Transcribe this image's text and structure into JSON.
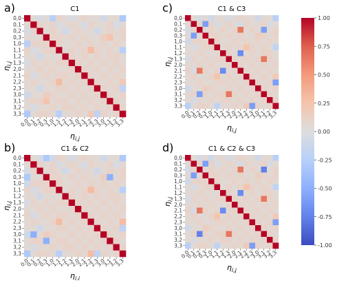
{
  "chart_data": [
    {
      "type": "heatmap",
      "panel_label": "a)",
      "title": "C1",
      "xlabel": "η_{i,j}",
      "ylabel": "η_{i,j}",
      "categories": [
        "0,0",
        "0,1",
        "0,2",
        "0,3",
        "1,0",
        "1,1",
        "1,2",
        "1,3",
        "2,0",
        "2,1",
        "2,2",
        "2,3",
        "3,0",
        "3,1",
        "3,2",
        "3,3"
      ],
      "values": [
        [
          1,
          0.05,
          -0.05,
          0.05,
          -0.25,
          0.1,
          0.05,
          -0.05,
          0.05,
          0.1,
          0.05,
          0.05,
          -0.1,
          0.05,
          0.05,
          -0.3
        ],
        [
          0.05,
          1,
          0.1,
          0.05,
          0.1,
          -0.05,
          0.05,
          0.1,
          0.05,
          -0.05,
          0.1,
          0.05,
          0.05,
          0.1,
          -0.05,
          0.05
        ],
        [
          -0.05,
          0.1,
          1,
          0.05,
          0.1,
          0.05,
          -0.1,
          0.05,
          0.1,
          0.05,
          0.05,
          -0.1,
          0.05,
          0.1,
          0.05,
          0.1
        ],
        [
          0.05,
          0.05,
          0.05,
          1,
          0.1,
          0.1,
          0.05,
          0.1,
          0.05,
          0.1,
          0.05,
          0.05,
          0.15,
          0.25,
          0.05,
          0.1
        ],
        [
          -0.25,
          0.1,
          0.1,
          0.1,
          1,
          0.1,
          0.05,
          0.05,
          0.1,
          0.05,
          0.1,
          0.05,
          0.1,
          0.05,
          0.1,
          0.05
        ],
        [
          0.1,
          -0.05,
          0.05,
          0.1,
          0.1,
          1,
          0.05,
          0.1,
          0.05,
          0.1,
          0.3,
          0.1,
          0.05,
          0.1,
          0.05,
          -0.25
        ],
        [
          0.05,
          0.05,
          -0.1,
          0.05,
          0.05,
          0.05,
          1,
          0.1,
          0.05,
          0.1,
          0.05,
          0.1,
          0.05,
          0.1,
          0.1,
          0.05
        ],
        [
          -0.05,
          0.1,
          0.05,
          0.1,
          0.05,
          0.1,
          0.1,
          1,
          0.1,
          0.05,
          0.1,
          0.05,
          0.1,
          0.05,
          0.1,
          0.05
        ],
        [
          0.05,
          0.05,
          0.1,
          0.05,
          0.1,
          0.05,
          0.05,
          0.1,
          1,
          0.1,
          0.05,
          0.1,
          0.05,
          0.1,
          0.05,
          0.1
        ],
        [
          0.1,
          -0.05,
          0.05,
          0.1,
          0.05,
          0.1,
          0.1,
          0.05,
          0.1,
          1,
          0.1,
          0.05,
          0.1,
          0.05,
          0.1,
          0.05
        ],
        [
          0.05,
          0.1,
          0.05,
          0.05,
          0.1,
          0.3,
          0.05,
          0.1,
          0.05,
          0.1,
          1,
          0.1,
          0.05,
          0.1,
          0.05,
          0.2
        ],
        [
          0.05,
          0.05,
          -0.1,
          0.05,
          0.05,
          0.1,
          0.1,
          0.05,
          0.1,
          0.05,
          0.1,
          1,
          0.1,
          0.05,
          0.1,
          -0.2
        ],
        [
          -0.1,
          0.05,
          0.05,
          0.15,
          0.1,
          0.05,
          0.05,
          0.1,
          0.05,
          0.1,
          0.05,
          0.1,
          1,
          0.1,
          0.05,
          0.1
        ],
        [
          0.05,
          0.1,
          0.1,
          0.25,
          0.05,
          0.1,
          0.1,
          0.05,
          0.1,
          0.05,
          0.1,
          0.05,
          0.1,
          1,
          0.1,
          0.05
        ],
        [
          0.05,
          -0.05,
          0.05,
          0.05,
          0.1,
          0.05,
          0.1,
          0.1,
          0.05,
          0.1,
          0.05,
          0.1,
          0.05,
          0.1,
          1,
          0.1
        ],
        [
          -0.3,
          0.05,
          0.1,
          0.1,
          0.05,
          -0.25,
          0.05,
          0.05,
          0.1,
          0.05,
          0.2,
          -0.2,
          0.1,
          0.05,
          0.1,
          1
        ]
      ],
      "zlim": [
        -1,
        1
      ]
    },
    {
      "type": "heatmap",
      "panel_label": "c)",
      "title": "C1 & C3",
      "xlabel": "η_{i,j}",
      "ylabel": "η_{i,j}",
      "categories": [
        "0,0",
        "0,1",
        "0,2",
        "0,3",
        "1,0",
        "1,1",
        "1,2",
        "1,3",
        "2,0",
        "2,1",
        "2,2",
        "2,3",
        "3,0",
        "3,1",
        "3,2",
        "3,3"
      ],
      "values": [
        [
          1,
          0.05,
          -0.05,
          0.05,
          -0.1,
          0.05,
          0.05,
          -0.05,
          0.05,
          0.1,
          0.05,
          0.05,
          -0.1,
          0.05,
          0.05,
          -0.25
        ],
        [
          0.05,
          1,
          0.1,
          -0.6,
          0.1,
          -0.05,
          0.05,
          0.1,
          0.05,
          -0.05,
          0.1,
          0.05,
          0.05,
          0.1,
          -0.05,
          0.05
        ],
        [
          -0.05,
          0.1,
          1,
          0.05,
          0.1,
          0.05,
          0.1,
          0.05,
          0.1,
          0.65,
          0.05,
          0.1,
          0.05,
          -0.6,
          0.05,
          0.1
        ],
        [
          0.05,
          -0.6,
          0.05,
          1,
          0.1,
          0.1,
          0.05,
          0.1,
          0.05,
          0.1,
          0.05,
          0.05,
          0.15,
          0.1,
          0.05,
          0.1
        ],
        [
          -0.1,
          0.1,
          0.1,
          0.1,
          1,
          0.1,
          0.05,
          0.05,
          0.1,
          0.05,
          0.1,
          0.05,
          0.1,
          0.05,
          0.1,
          0.05
        ],
        [
          0.05,
          -0.05,
          0.05,
          0.1,
          0.1,
          1,
          0.05,
          0.1,
          0.05,
          0.1,
          0.25,
          0.1,
          0.05,
          0.1,
          0.05,
          -0.2
        ],
        [
          0.05,
          0.05,
          0.1,
          0.05,
          0.05,
          0.05,
          1,
          0.1,
          0.05,
          -0.7,
          0.05,
          0.1,
          0.05,
          0.1,
          0.1,
          0.05
        ],
        [
          -0.05,
          0.1,
          0.05,
          0.1,
          0.05,
          0.1,
          0.1,
          1,
          0.1,
          0.05,
          0.1,
          0.05,
          0.1,
          0.65,
          0.1,
          0.05
        ],
        [
          0.05,
          0.05,
          0.1,
          0.05,
          0.1,
          0.05,
          0.05,
          0.1,
          1,
          0.1,
          0.05,
          0.1,
          0.05,
          0.1,
          0.05,
          0.1
        ],
        [
          0.1,
          -0.05,
          0.65,
          0.1,
          0.05,
          0.1,
          -0.7,
          0.05,
          0.1,
          1,
          0.1,
          0.05,
          0.1,
          0.05,
          0.1,
          0.05
        ],
        [
          0.05,
          0.1,
          0.05,
          0.05,
          0.1,
          0.25,
          0.05,
          0.1,
          0.05,
          0.1,
          1,
          0.1,
          0.05,
          0.1,
          0.05,
          0.2
        ],
        [
          0.05,
          0.05,
          0.1,
          0.05,
          0.05,
          0.1,
          0.1,
          0.05,
          0.1,
          0.05,
          0.1,
          1,
          0.1,
          0.05,
          0.1,
          -0.6
        ],
        [
          -0.1,
          0.05,
          0.05,
          0.15,
          0.1,
          0.05,
          0.05,
          0.1,
          0.05,
          0.1,
          0.05,
          0.1,
          1,
          0.1,
          0.05,
          0.1
        ],
        [
          0.05,
          0.1,
          -0.6,
          0.1,
          0.05,
          0.1,
          0.1,
          0.65,
          0.1,
          0.05,
          0.1,
          0.05,
          0.1,
          1,
          0.1,
          0.05
        ],
        [
          0.05,
          -0.05,
          0.05,
          0.05,
          0.1,
          0.05,
          0.1,
          0.1,
          0.05,
          0.1,
          0.05,
          0.1,
          0.05,
          0.1,
          1,
          0.1
        ],
        [
          -0.25,
          0.05,
          0.1,
          0.1,
          0.05,
          -0.2,
          0.05,
          0.05,
          0.1,
          0.05,
          0.2,
          -0.6,
          0.1,
          0.05,
          0.1,
          1
        ]
      ],
      "zlim": [
        -1,
        1
      ]
    },
    {
      "type": "heatmap",
      "panel_label": "b)",
      "title": "C1 & C2",
      "xlabel": "η_{i,j}",
      "ylabel": "η_{i,j}",
      "categories": [
        "0,0",
        "0,1",
        "0,2",
        "0,3",
        "1,0",
        "1,1",
        "1,2",
        "1,3",
        "2,0",
        "2,1",
        "2,2",
        "2,3",
        "3,0",
        "3,1",
        "3,2",
        "3,3"
      ],
      "values": [
        [
          1,
          0.05,
          -0.05,
          -0.3,
          -0.1,
          0.1,
          0.05,
          -0.05,
          0.05,
          0.1,
          0.05,
          0.05,
          -0.1,
          0.05,
          0.05,
          -0.3
        ],
        [
          0.05,
          1,
          0.1,
          0.05,
          0.1,
          -0.05,
          0.05,
          0.1,
          0.05,
          -0.05,
          0.1,
          0.05,
          0.05,
          0.1,
          -0.05,
          0.05
        ],
        [
          -0.05,
          0.1,
          1,
          0.05,
          0.1,
          0.05,
          -0.1,
          0.05,
          0.1,
          0.05,
          0.05,
          -0.1,
          0.05,
          0.1,
          0.05,
          0.1
        ],
        [
          -0.3,
          0.05,
          0.05,
          1,
          0.1,
          0.1,
          0.05,
          0.1,
          0.05,
          0.1,
          0.05,
          0.05,
          0.15,
          -0.5,
          0.05,
          0.1
        ],
        [
          -0.1,
          0.1,
          0.1,
          0.1,
          1,
          0.1,
          0.05,
          0.05,
          0.1,
          0.05,
          0.1,
          0.05,
          0.1,
          0.05,
          0.1,
          0.05
        ],
        [
          0.1,
          -0.05,
          0.05,
          0.1,
          0.1,
          1,
          0.05,
          0.1,
          0.05,
          0.1,
          0.3,
          0.1,
          0.05,
          0.1,
          0.05,
          -0.25
        ],
        [
          0.05,
          0.05,
          -0.1,
          0.05,
          0.05,
          0.05,
          1,
          0.1,
          0.05,
          0.1,
          0.05,
          0.1,
          0.05,
          0.1,
          0.1,
          0.05
        ],
        [
          -0.05,
          0.1,
          0.05,
          0.1,
          0.05,
          0.1,
          0.1,
          1,
          0.1,
          0.05,
          0.1,
          0.05,
          0.1,
          0.05,
          0.1,
          0.05
        ],
        [
          0.05,
          0.05,
          0.1,
          0.05,
          0.1,
          0.05,
          0.05,
          0.1,
          1,
          0.1,
          0.05,
          0.1,
          0.05,
          0.1,
          0.05,
          0.1
        ],
        [
          0.1,
          -0.05,
          0.05,
          0.1,
          0.05,
          0.1,
          0.1,
          0.05,
          0.1,
          1,
          0.1,
          0.05,
          0.1,
          0.05,
          0.1,
          0.05
        ],
        [
          0.05,
          0.1,
          0.05,
          0.05,
          0.1,
          0.3,
          0.05,
          0.1,
          0.05,
          0.1,
          1,
          0.1,
          0.05,
          0.1,
          0.05,
          0.3
        ],
        [
          0.05,
          0.05,
          -0.1,
          0.05,
          0.05,
          0.1,
          0.1,
          0.05,
          0.1,
          0.05,
          0.1,
          1,
          0.1,
          0.05,
          0.1,
          -0.2
        ],
        [
          -0.1,
          -0.5,
          0.05,
          0.15,
          0.1,
          0.05,
          0.05,
          0.1,
          0.05,
          0.1,
          0.05,
          0.1,
          1,
          0.1,
          0.05,
          0.1
        ],
        [
          0.05,
          0.1,
          0.1,
          -0.5,
          0.05,
          0.1,
          0.1,
          0.05,
          0.1,
          0.05,
          0.1,
          0.05,
          0.1,
          1,
          0.1,
          0.05
        ],
        [
          0.05,
          -0.05,
          0.05,
          0.05,
          0.1,
          0.05,
          0.1,
          0.1,
          0.05,
          0.1,
          0.05,
          0.1,
          0.05,
          0.1,
          1,
          0.1
        ],
        [
          -0.3,
          0.05,
          0.1,
          0.1,
          0.05,
          -0.25,
          0.05,
          0.05,
          0.1,
          0.05,
          0.3,
          -0.2,
          0.1,
          0.05,
          0.1,
          1
        ]
      ],
      "zlim": [
        -1,
        1
      ]
    },
    {
      "type": "heatmap",
      "panel_label": "d)",
      "title": "C1 & C2 & C3",
      "xlabel": "η_{i,j}",
      "ylabel": "η_{i,j}",
      "categories": [
        "0,0",
        "0,1",
        "0,2",
        "0,3",
        "1,0",
        "1,1",
        "1,2",
        "1,3",
        "2,0",
        "2,1",
        "2,2",
        "2,3",
        "3,0",
        "3,1",
        "3,2",
        "3,3"
      ],
      "values": [
        [
          1,
          0.05,
          -0.05,
          0.05,
          -0.1,
          0.05,
          0.05,
          -0.05,
          0.05,
          0.1,
          0.05,
          0.05,
          -0.1,
          0.05,
          0.05,
          -0.25
        ],
        [
          0.05,
          1,
          0.1,
          -0.6,
          0.1,
          -0.05,
          0.05,
          0.1,
          0.05,
          -0.05,
          0.1,
          0.05,
          0.05,
          0.1,
          -0.05,
          0.05
        ],
        [
          -0.05,
          0.1,
          1,
          0.05,
          0.1,
          0.05,
          0.1,
          0.05,
          0.1,
          0.65,
          0.05,
          0.1,
          0.05,
          -0.75,
          0.05,
          0.1
        ],
        [
          0.05,
          -0.6,
          0.05,
          1,
          0.1,
          0.1,
          0.05,
          0.1,
          0.05,
          0.1,
          0.05,
          0.05,
          0.15,
          0.1,
          0.05,
          0.1
        ],
        [
          -0.1,
          0.1,
          0.1,
          0.1,
          1,
          0.1,
          0.05,
          0.05,
          0.1,
          0.05,
          0.1,
          0.05,
          0.1,
          0.05,
          0.1,
          0.05
        ],
        [
          0.05,
          -0.05,
          0.05,
          0.1,
          0.1,
          1,
          0.05,
          0.1,
          0.05,
          0.1,
          0.25,
          0.1,
          0.05,
          0.1,
          0.05,
          -0.2
        ],
        [
          0.05,
          0.05,
          0.1,
          0.05,
          0.05,
          0.05,
          1,
          0.1,
          0.05,
          -0.7,
          0.05,
          0.1,
          0.05,
          0.1,
          0.1,
          0.05
        ],
        [
          -0.05,
          0.1,
          0.05,
          0.1,
          0.05,
          0.1,
          0.1,
          1,
          0.1,
          0.05,
          0.1,
          0.05,
          0.1,
          0.65,
          0.1,
          0.05
        ],
        [
          0.05,
          0.05,
          0.1,
          0.05,
          0.1,
          0.05,
          0.05,
          0.1,
          1,
          0.1,
          0.05,
          0.1,
          0.05,
          0.1,
          0.05,
          0.1
        ],
        [
          0.1,
          -0.05,
          0.65,
          0.1,
          0.05,
          0.1,
          -0.7,
          0.05,
          0.1,
          1,
          0.1,
          0.05,
          0.1,
          0.05,
          0.1,
          0.05
        ],
        [
          0.05,
          0.1,
          0.05,
          0.05,
          0.1,
          0.25,
          0.05,
          0.1,
          0.05,
          0.1,
          1,
          0.1,
          0.05,
          0.1,
          0.05,
          0.2
        ],
        [
          0.05,
          0.05,
          0.1,
          0.05,
          0.05,
          0.1,
          0.1,
          0.05,
          0.1,
          0.05,
          0.1,
          1,
          0.1,
          0.05,
          0.1,
          -0.6
        ],
        [
          -0.1,
          0.05,
          0.05,
          0.15,
          0.1,
          0.05,
          0.05,
          0.1,
          0.05,
          0.1,
          0.05,
          0.1,
          1,
          0.1,
          0.05,
          0.1
        ],
        [
          0.05,
          0.1,
          -0.75,
          0.1,
          0.05,
          0.1,
          0.1,
          0.65,
          0.1,
          0.05,
          0.1,
          0.05,
          0.1,
          1,
          0.1,
          0.05
        ],
        [
          0.05,
          -0.05,
          0.05,
          0.05,
          0.1,
          0.05,
          0.1,
          0.1,
          0.05,
          0.1,
          0.05,
          0.1,
          0.05,
          0.1,
          1,
          0.1
        ],
        [
          -0.25,
          0.05,
          0.1,
          0.1,
          0.05,
          -0.2,
          0.05,
          0.05,
          0.1,
          0.05,
          0.2,
          -0.6,
          0.1,
          0.05,
          0.1,
          1
        ]
      ],
      "zlim": [
        -1,
        1
      ]
    }
  ],
  "colorbar": {
    "colormap": "coolwarm",
    "range": [
      -1,
      1
    ],
    "ticks": [
      "1.00",
      "0.75",
      "0.50",
      "0.25",
      "0.00",
      "-0.25",
      "-0.50",
      "-0.75",
      "-1.00"
    ],
    "tick_values": [
      1,
      0.75,
      0.5,
      0.25,
      0,
      -0.25,
      -0.5,
      -0.75,
      -1
    ]
  }
}
